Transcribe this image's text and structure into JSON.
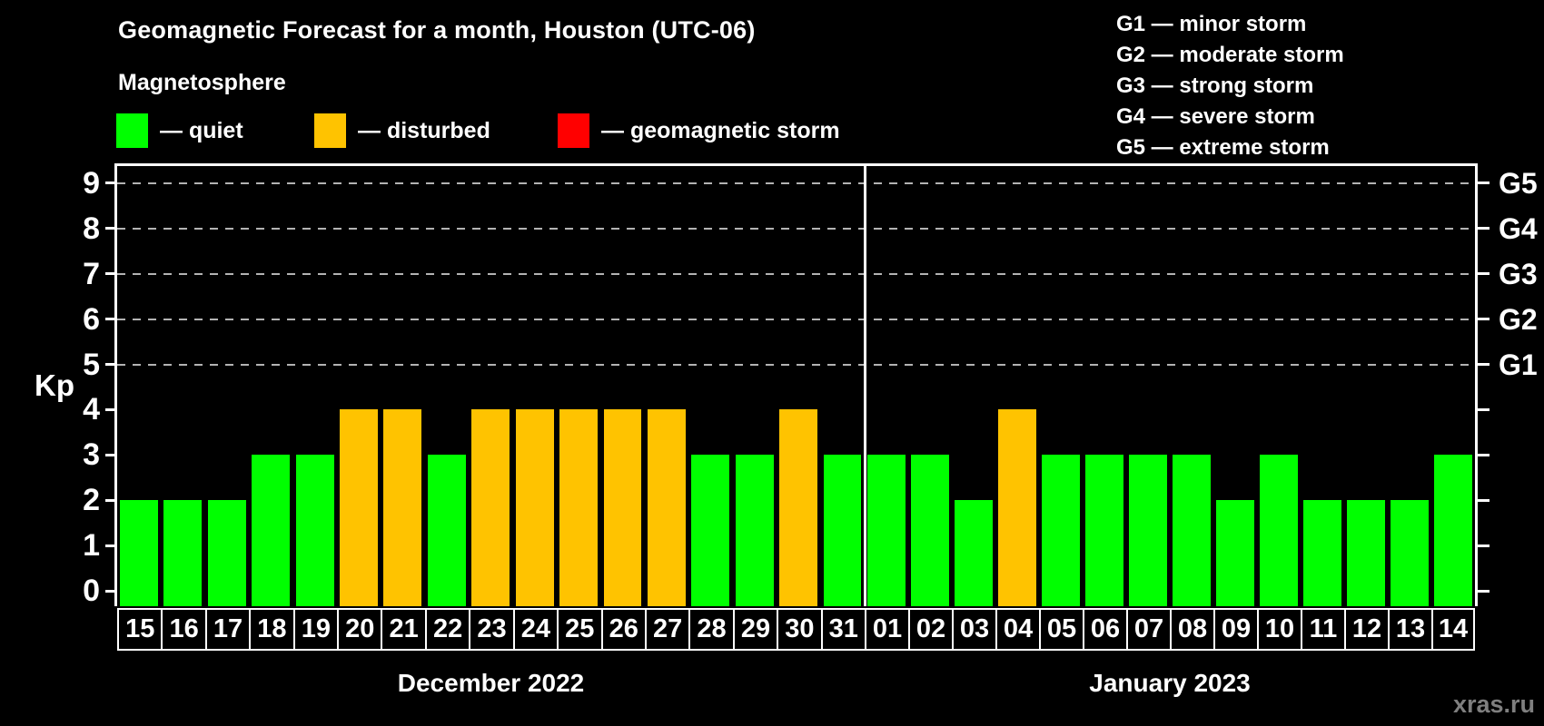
{
  "title": "Geomagnetic Forecast for a month, Houston (UTC-06)",
  "subtitle": "Magnetosphere",
  "kp_legend": [
    {
      "key": "quiet",
      "label": "— quiet",
      "color": "#00ff00"
    },
    {
      "key": "disturbed",
      "label": "— disturbed",
      "color": "#ffc300"
    },
    {
      "key": "storm",
      "label": "— geomagnetic storm",
      "color": "#ff0000"
    }
  ],
  "g_scale_legend": [
    "G1 — minor storm",
    "G2 — moderate storm",
    "G3 — strong storm",
    "G4 — severe storm",
    "G5 — extreme storm"
  ],
  "watermark": "xras.ru",
  "chart_data": {
    "type": "bar",
    "title": "Geomagnetic Forecast for a month, Houston (UTC-06)",
    "ylabel": "Kp",
    "ylim": [
      0,
      9
    ],
    "yticks": [
      0,
      1,
      2,
      3,
      4,
      5,
      6,
      7,
      8,
      9
    ],
    "grid_values": [
      5,
      6,
      7,
      8,
      9
    ],
    "grid_style": "dashed",
    "legend_position": "top",
    "right_axis_labels": [
      {
        "label": "G1",
        "value": 5
      },
      {
        "label": "G2",
        "value": 6
      },
      {
        "label": "G3",
        "value": 7
      },
      {
        "label": "G4",
        "value": 8
      },
      {
        "label": "G5",
        "value": 9
      }
    ],
    "status_colors": {
      "quiet": "#00ff00",
      "disturbed": "#ffc300",
      "storm": "#ff0000"
    },
    "months": [
      {
        "label": "December 2022",
        "days": [
          {
            "day": "15",
            "kp": 2,
            "status": "quiet"
          },
          {
            "day": "16",
            "kp": 2,
            "status": "quiet"
          },
          {
            "day": "17",
            "kp": 2,
            "status": "quiet"
          },
          {
            "day": "18",
            "kp": 3,
            "status": "quiet"
          },
          {
            "day": "19",
            "kp": 3,
            "status": "quiet"
          },
          {
            "day": "20",
            "kp": 4,
            "status": "disturbed"
          },
          {
            "day": "21",
            "kp": 4,
            "status": "disturbed"
          },
          {
            "day": "22",
            "kp": 3,
            "status": "quiet"
          },
          {
            "day": "23",
            "kp": 4,
            "status": "disturbed"
          },
          {
            "day": "24",
            "kp": 4,
            "status": "disturbed"
          },
          {
            "day": "25",
            "kp": 4,
            "status": "disturbed"
          },
          {
            "day": "26",
            "kp": 4,
            "status": "disturbed"
          },
          {
            "day": "27",
            "kp": 4,
            "status": "disturbed"
          },
          {
            "day": "28",
            "kp": 3,
            "status": "quiet"
          },
          {
            "day": "29",
            "kp": 3,
            "status": "quiet"
          },
          {
            "day": "30",
            "kp": 4,
            "status": "disturbed"
          },
          {
            "day": "31",
            "kp": 3,
            "status": "quiet"
          }
        ]
      },
      {
        "label": "January 2023",
        "days": [
          {
            "day": "01",
            "kp": 3,
            "status": "quiet"
          },
          {
            "day": "02",
            "kp": 3,
            "status": "quiet"
          },
          {
            "day": "03",
            "kp": 2,
            "status": "quiet"
          },
          {
            "day": "04",
            "kp": 4,
            "status": "disturbed"
          },
          {
            "day": "05",
            "kp": 3,
            "status": "quiet"
          },
          {
            "day": "06",
            "kp": 3,
            "status": "quiet"
          },
          {
            "day": "07",
            "kp": 3,
            "status": "quiet"
          },
          {
            "day": "08",
            "kp": 3,
            "status": "quiet"
          },
          {
            "day": "09",
            "kp": 2,
            "status": "quiet"
          },
          {
            "day": "10",
            "kp": 3,
            "status": "quiet"
          },
          {
            "day": "11",
            "kp": 2,
            "status": "quiet"
          },
          {
            "day": "12",
            "kp": 2,
            "status": "quiet"
          },
          {
            "day": "13",
            "kp": 2,
            "status": "quiet"
          },
          {
            "day": "14",
            "kp": 3,
            "status": "quiet"
          }
        ]
      }
    ]
  }
}
